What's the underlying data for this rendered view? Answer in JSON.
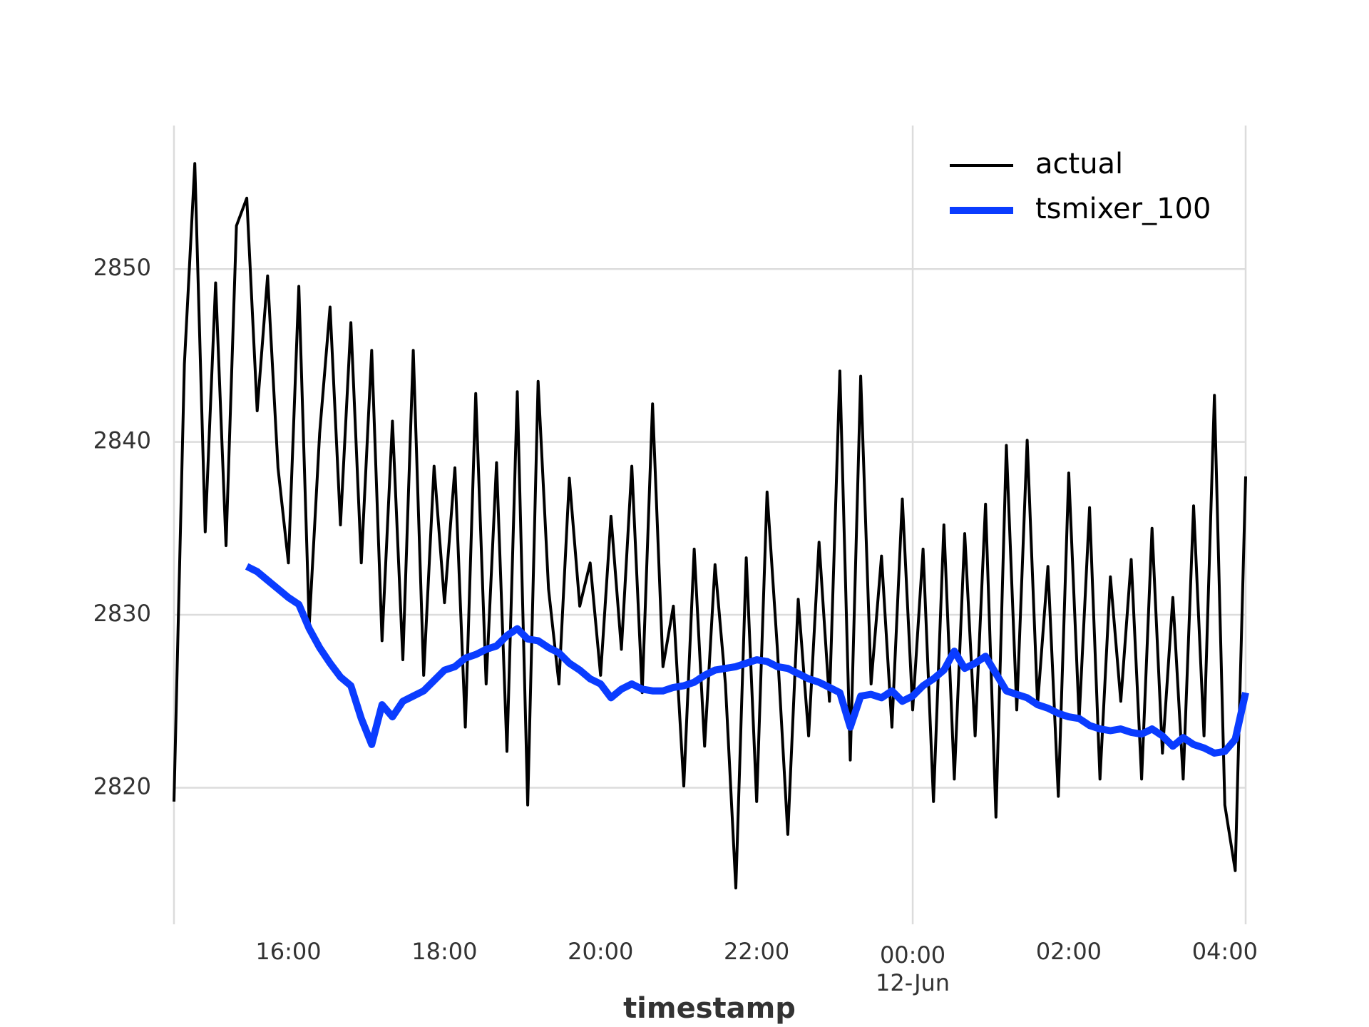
{
  "chart_data": {
    "type": "line",
    "xlabel": "timestamp",
    "x": [
      "14:32",
      "14:40",
      "14:48",
      "14:56",
      "15:04",
      "15:12",
      "15:20",
      "15:28",
      "15:36",
      "15:44",
      "15:52",
      "16:00",
      "16:08",
      "16:16",
      "16:24",
      "16:32",
      "16:40",
      "16:48",
      "16:56",
      "17:04",
      "17:12",
      "17:20",
      "17:28",
      "17:36",
      "17:44",
      "17:52",
      "18:00",
      "18:08",
      "18:16",
      "18:24",
      "18:32",
      "18:40",
      "18:48",
      "18:56",
      "19:04",
      "19:12",
      "19:20",
      "19:28",
      "19:36",
      "19:44",
      "19:52",
      "20:00",
      "20:08",
      "20:16",
      "20:24",
      "20:32",
      "20:40",
      "20:48",
      "20:56",
      "21:04",
      "21:12",
      "21:20",
      "21:28",
      "21:36",
      "21:44",
      "21:52",
      "22:00",
      "22:08",
      "22:16",
      "22:24",
      "22:32",
      "22:40",
      "22:48",
      "22:56",
      "23:04",
      "23:12",
      "23:20",
      "23:28",
      "23:36",
      "23:44",
      "23:52",
      "00:00",
      "00:08",
      "00:16",
      "00:24",
      "00:32",
      "00:40",
      "00:48",
      "00:56",
      "01:04",
      "01:12",
      "01:20",
      "01:28",
      "01:36",
      "01:44",
      "01:52",
      "02:00",
      "02:08",
      "02:16",
      "02:24",
      "02:32",
      "02:40",
      "02:48",
      "02:56",
      "03:04",
      "03:12",
      "03:20",
      "03:28",
      "03:36",
      "03:44",
      "03:52",
      "04:00",
      "04:08",
      "04:16"
    ],
    "series": [
      {
        "name": "actual",
        "color": "#000000",
        "width": 4,
        "values": [
          2819.2,
          2844.5,
          2856.1,
          2834.8,
          2849.2,
          2834.0,
          2852.5,
          2854.1,
          2841.8,
          2849.6,
          2838.5,
          2833.0,
          2849.0,
          2829.4,
          2840.5,
          2847.8,
          2835.2,
          2846.9,
          2833.0,
          2845.3,
          2828.5,
          2841.2,
          2827.4,
          2845.3,
          2826.5,
          2838.6,
          2830.7,
          2838.5,
          2823.5,
          2842.8,
          2826.0,
          2838.8,
          2822.1,
          2842.9,
          2819.0,
          2843.5,
          2831.5,
          2826.0,
          2837.9,
          2830.5,
          2833.0,
          2826.5,
          2835.7,
          2828.0,
          2838.6,
          2825.5,
          2842.2,
          2827.0,
          2830.5,
          2820.1,
          2833.8,
          2822.4,
          2832.9,
          2826.0,
          2814.2,
          2833.3,
          2819.2,
          2837.1,
          2828.0,
          2817.3,
          2830.9,
          2823.0,
          2834.2,
          2825.0,
          2844.1,
          2821.6,
          2843.8,
          2826.0,
          2833.4,
          2823.5,
          2836.7,
          2824.5,
          2833.8,
          2819.2,
          2835.2,
          2820.5,
          2834.7,
          2823.0,
          2836.4,
          2818.3,
          2839.8,
          2824.5,
          2840.1,
          2824.8,
          2832.8,
          2819.5,
          2838.2,
          2824.0,
          2836.2,
          2820.5,
          2832.2,
          2825.0,
          2833.2,
          2820.5,
          2835.0,
          2822.0,
          2831.0,
          2820.5,
          2836.3,
          2823.0,
          2842.7,
          2819.0,
          2815.2,
          2838.0
        ]
      },
      {
        "name": "tsmixer_100",
        "color": "#0a3cff",
        "width": 10,
        "values": [
          null,
          null,
          null,
          null,
          null,
          null,
          null,
          2832.8,
          2832.5,
          2832.0,
          2831.5,
          2831.0,
          2830.6,
          2829.2,
          2828.1,
          2827.2,
          2826.4,
          2825.9,
          2824.0,
          2822.5,
          2824.8,
          2824.1,
          2825.0,
          2825.3,
          2825.6,
          2826.2,
          2826.8,
          2827.0,
          2827.5,
          2827.7,
          2828.0,
          2828.2,
          2828.8,
          2829.2,
          2828.6,
          2828.5,
          2828.1,
          2827.8,
          2827.2,
          2826.8,
          2826.3,
          2826.0,
          2825.2,
          2825.7,
          2826.0,
          2825.7,
          2825.6,
          2825.6,
          2825.8,
          2825.9,
          2826.1,
          2826.5,
          2826.8,
          2826.9,
          2827.0,
          2827.2,
          2827.4,
          2827.3,
          2827.0,
          2826.9,
          2826.6,
          2826.3,
          2826.1,
          2825.8,
          2825.5,
          2823.5,
          2825.3,
          2825.4,
          2825.2,
          2825.6,
          2825.0,
          2825.3,
          2825.9,
          2826.3,
          2826.8,
          2827.9,
          2826.9,
          2827.2,
          2827.6,
          2826.6,
          2825.6,
          2825.4,
          2825.2,
          2824.8,
          2824.6,
          2824.3,
          2824.1,
          2824.0,
          2823.6,
          2823.4,
          2823.3,
          2823.4,
          2823.2,
          2823.1,
          2823.4,
          2823.0,
          2822.4,
          2822.9,
          2822.5,
          2822.3,
          2822.0,
          2822.1,
          2822.8,
          2825.5
        ]
      }
    ],
    "xlim": [
      "14:32",
      "04:16"
    ],
    "xticks": [
      "16:00",
      "18:00",
      "20:00",
      "22:00",
      "00:00",
      "02:00",
      "04:00"
    ],
    "xdate_label": "12-Jun",
    "ylim": [
      2812.1,
      2858.3
    ],
    "yticks": [
      2820,
      2830,
      2840,
      2850
    ],
    "grid": true,
    "legend": "upper right"
  }
}
